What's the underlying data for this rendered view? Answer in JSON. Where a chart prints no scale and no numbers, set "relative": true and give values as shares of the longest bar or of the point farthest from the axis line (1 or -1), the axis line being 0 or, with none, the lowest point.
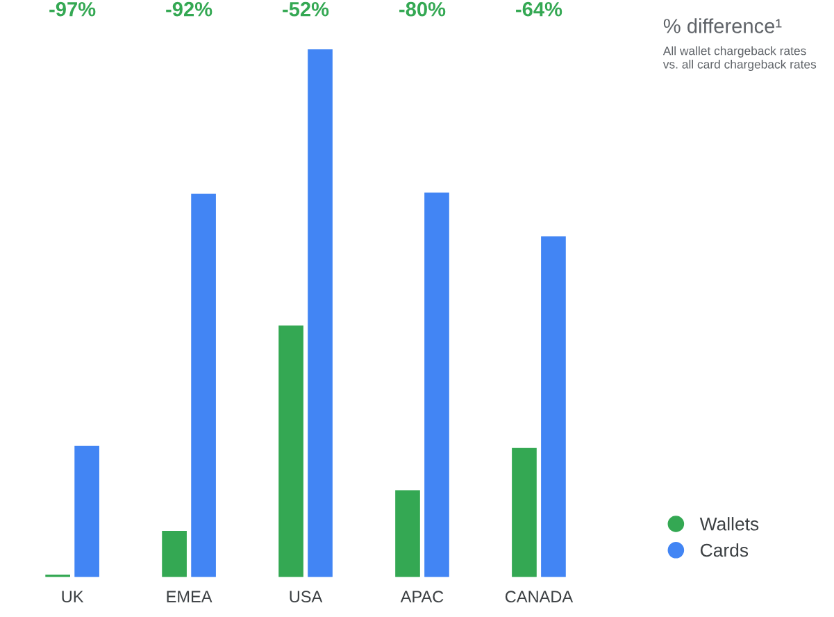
{
  "chart_data": {
    "type": "bar",
    "title": "% difference¹",
    "subtitle": "All wallet chargeback rates\nvs. all card chargeback rates",
    "relative": true,
    "categories": [
      "UK",
      "EMEA",
      "USA",
      "APAC",
      "CANADA"
    ],
    "series": [
      {
        "name": "Wallets",
        "color": "#34a853",
        "values": [
          0.003,
          0.086,
          0.475,
          0.163,
          0.243
        ]
      },
      {
        "name": "Cards",
        "color": "#4285f4",
        "values": [
          0.247,
          0.725,
          1,
          0.727,
          0.644
        ]
      }
    ],
    "annotations": [
      "-97%",
      "-92%",
      "-52%",
      "-80%",
      "-64%"
    ],
    "legend": "bottom right",
    "marker": "circle",
    "grid": false
  }
}
